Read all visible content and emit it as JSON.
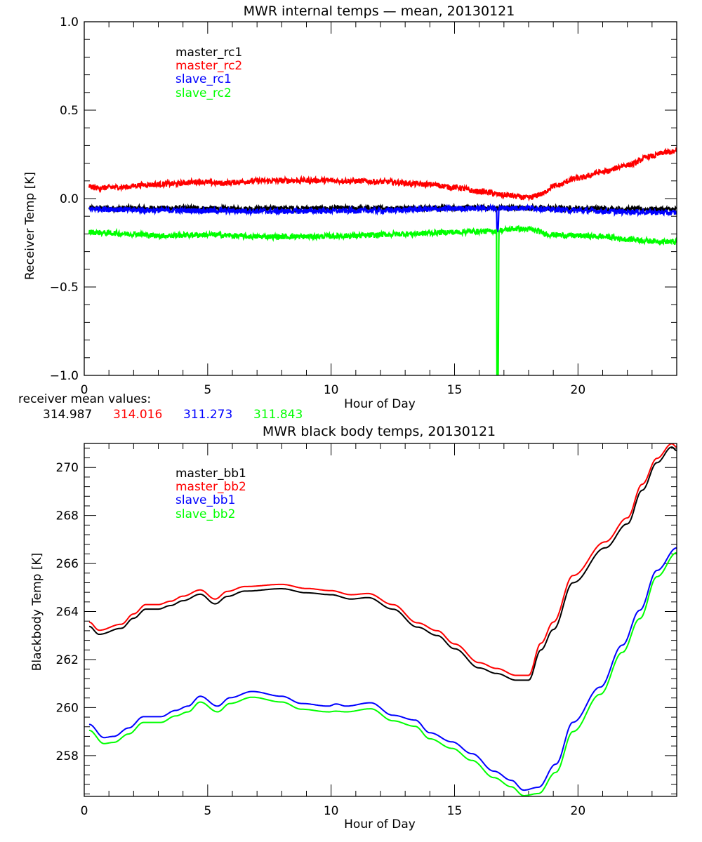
{
  "chart_data": [
    {
      "type": "line",
      "title": "MWR internal temps — mean, 20130121",
      "xlabel": "Hour of Day",
      "ylabel": "Receiver Temp [K]",
      "xlim": [
        0,
        24
      ],
      "ylim": [
        -1.0,
        1.0
      ],
      "xticks": [
        0,
        5,
        10,
        15,
        20
      ],
      "xtick_labels": [
        "0",
        "5",
        "10",
        "15",
        "20"
      ],
      "xminor_step": 1,
      "yticks": [
        -1.0,
        -0.5,
        0.0,
        0.5,
        1.0
      ],
      "ytick_labels": [
        "−1.0",
        "−0.5",
        "0.0",
        "0.5",
        "1.0"
      ],
      "yminor_step": 0.1,
      "grid": false,
      "legend_position": "top-left",
      "series": [
        {
          "name": "master_rc1",
          "color": "#000000",
          "x": [
            0.2,
            2,
            4,
            6,
            8,
            10,
            12,
            14,
            16,
            18,
            20,
            22,
            24
          ],
          "y": [
            -0.055,
            -0.055,
            -0.055,
            -0.058,
            -0.056,
            -0.056,
            -0.055,
            -0.053,
            -0.052,
            -0.053,
            -0.056,
            -0.06,
            -0.062
          ]
        },
        {
          "name": "master_rc2",
          "color": "#ff0000",
          "x": [
            0.2,
            0.5,
            1.5,
            2.5,
            3.5,
            4.7,
            5.5,
            7,
            9,
            11,
            12,
            14,
            15,
            16,
            17,
            18,
            18.5,
            19,
            20,
            21,
            22,
            23,
            23.5,
            24
          ],
          "y": [
            0.067,
            0.06,
            0.065,
            0.078,
            0.083,
            0.095,
            0.087,
            0.1,
            0.103,
            0.1,
            0.095,
            0.08,
            0.063,
            0.04,
            0.02,
            0.004,
            0.024,
            0.07,
            0.115,
            0.15,
            0.19,
            0.24,
            0.26,
            0.265
          ]
        },
        {
          "name": "slave_rc1",
          "color": "#0000ff",
          "x": [
            0.2,
            1,
            2,
            4,
            6,
            8,
            10,
            12,
            14,
            16,
            16.7,
            16.72,
            16.76,
            16.8,
            18,
            19,
            20,
            22,
            24
          ],
          "y": [
            -0.058,
            -0.06,
            -0.065,
            -0.068,
            -0.07,
            -0.072,
            -0.07,
            -0.068,
            -0.06,
            -0.055,
            -0.055,
            -0.18,
            -0.18,
            -0.055,
            -0.053,
            -0.062,
            -0.068,
            -0.075,
            -0.08
          ]
        },
        {
          "name": "slave_rc2",
          "color": "#00ff00",
          "x": [
            0.2,
            1,
            2,
            3,
            5,
            7,
            9,
            11,
            13,
            15,
            16,
            16.7,
            16.72,
            16.76,
            16.8,
            17.5,
            18,
            19,
            20,
            21,
            22,
            23,
            24
          ],
          "y": [
            -0.19,
            -0.195,
            -0.2,
            -0.21,
            -0.205,
            -0.215,
            -0.215,
            -0.21,
            -0.2,
            -0.19,
            -0.185,
            -0.185,
            -1.1,
            -1.1,
            -0.18,
            -0.17,
            -0.175,
            -0.205,
            -0.21,
            -0.215,
            -0.23,
            -0.24,
            -0.245
          ]
        }
      ],
      "annotations": {
        "label": "receiver mean values:",
        "values": [
          {
            "text": "314.987",
            "color": "#000000"
          },
          {
            "text": "314.016",
            "color": "#ff0000"
          },
          {
            "text": "311.273",
            "color": "#0000ff"
          },
          {
            "text": "311.843",
            "color": "#00ff00"
          }
        ]
      }
    },
    {
      "type": "line",
      "title": "MWR black body temps, 20130121",
      "xlabel": "Hour of Day",
      "ylabel": "Blackbody Temp [K]",
      "xlim": [
        0,
        24
      ],
      "ylim": [
        256.3,
        271.0
      ],
      "xticks": [
        0,
        5,
        10,
        15,
        20
      ],
      "xtick_labels": [
        "0",
        "5",
        "10",
        "15",
        "20"
      ],
      "xminor_step": 1,
      "yticks": [
        258,
        260,
        262,
        264,
        266,
        268,
        270
      ],
      "ytick_labels": [
        "258",
        "260",
        "262",
        "264",
        "266",
        "268",
        "270"
      ],
      "yminor_step": 0.4,
      "grid": false,
      "legend_position": "top-left",
      "series": [
        {
          "name": "master_bb1",
          "color": "#000000",
          "x": [
            0.2,
            0.6,
            1.5,
            2,
            2.5,
            3,
            3.5,
            4,
            4.7,
            5.3,
            5.8,
            6.5,
            8,
            9,
            10,
            10.8,
            11.5,
            12.5,
            13.5,
            14.3,
            15,
            16,
            16.7,
            17.5,
            18,
            18.5,
            19,
            19.8,
            21.1,
            22,
            22.6,
            23.2,
            23.8,
            24
          ],
          "y": [
            263.38,
            263.05,
            263.3,
            263.72,
            264.1,
            264.1,
            264.25,
            264.45,
            264.72,
            264.32,
            264.63,
            264.85,
            264.95,
            264.78,
            264.7,
            264.52,
            264.58,
            264.1,
            263.35,
            263.0,
            262.45,
            261.65,
            261.42,
            261.14,
            261.14,
            262.4,
            263.25,
            265.2,
            266.65,
            267.65,
            269.05,
            270.2,
            270.85,
            270.7
          ]
        },
        {
          "name": "master_bb2",
          "color": "#ff0000",
          "x": [
            0.2,
            0.6,
            1.5,
            2,
            2.5,
            3,
            3.5,
            4,
            4.7,
            5.3,
            5.8,
            6.5,
            8,
            9,
            10,
            10.8,
            11.5,
            12.5,
            13.5,
            14.3,
            15,
            16,
            16.7,
            17.5,
            18,
            18.5,
            19,
            19.8,
            21.1,
            22,
            22.6,
            23.2,
            23.8,
            24
          ],
          "y": [
            263.56,
            263.22,
            263.47,
            263.9,
            264.29,
            264.29,
            264.43,
            264.64,
            264.9,
            264.52,
            264.84,
            265.04,
            265.13,
            264.96,
            264.87,
            264.7,
            264.75,
            264.29,
            263.53,
            263.2,
            262.65,
            261.87,
            261.63,
            261.34,
            261.34,
            262.68,
            263.56,
            265.5,
            266.9,
            267.9,
            269.3,
            270.38,
            270.99,
            270.85
          ]
        },
        {
          "name": "slave_bb1",
          "color": "#0000ff",
          "x": [
            0.2,
            0.8,
            1.2,
            1.8,
            2.4,
            3.1,
            3.7,
            4.2,
            4.7,
            5.4,
            5.9,
            6.8,
            8,
            8.8,
            9.9,
            10.2,
            10.6,
            11.6,
            12.5,
            13.4,
            14,
            14.9,
            15.7,
            16.6,
            17.3,
            17.8,
            18.4,
            19.1,
            19.8,
            20.9,
            21.8,
            22.5,
            23.2,
            24
          ],
          "y": [
            259.3,
            258.75,
            258.8,
            259.15,
            259.62,
            259.62,
            259.88,
            260.06,
            260.47,
            260.06,
            260.41,
            260.67,
            260.47,
            260.17,
            260.06,
            260.15,
            260.06,
            260.2,
            259.68,
            259.48,
            258.95,
            258.57,
            258.08,
            257.35,
            256.97,
            256.56,
            256.68,
            257.64,
            259.39,
            260.85,
            262.6,
            264.05,
            265.71,
            266.65
          ]
        },
        {
          "name": "slave_bb2",
          "color": "#00ff00",
          "x": [
            0.2,
            0.8,
            1.2,
            1.8,
            2.4,
            3.1,
            3.7,
            4.2,
            4.7,
            5.4,
            5.9,
            6.8,
            8,
            8.8,
            9.9,
            10.2,
            10.6,
            11.6,
            12.5,
            13.4,
            14,
            14.9,
            15.7,
            16.6,
            17.3,
            17.8,
            18.4,
            19.1,
            19.8,
            20.9,
            21.8,
            22.5,
            23.2,
            24
          ],
          "y": [
            259.05,
            258.5,
            258.55,
            258.9,
            259.38,
            259.38,
            259.65,
            259.82,
            260.23,
            259.82,
            260.17,
            260.43,
            260.23,
            259.93,
            259.82,
            259.85,
            259.82,
            259.95,
            259.45,
            259.22,
            258.7,
            258.3,
            257.8,
            257.08,
            256.7,
            256.33,
            256.42,
            257.3,
            259.0,
            260.55,
            262.3,
            263.7,
            265.45,
            266.45
          ]
        }
      ]
    }
  ]
}
